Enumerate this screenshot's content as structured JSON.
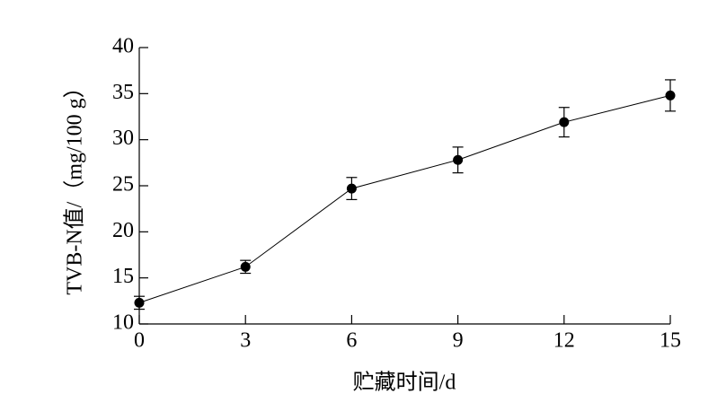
{
  "chart_data": {
    "type": "line",
    "xlabel": "贮藏时间/d",
    "ylabel": "TVB-N值/（mg/100 g）",
    "x": [
      0,
      3,
      6,
      9,
      12,
      15
    ],
    "series": [
      {
        "values": [
          12.3,
          16.2,
          24.7,
          27.8,
          31.9,
          34.8
        ],
        "errors": [
          0.7,
          0.7,
          1.2,
          1.4,
          1.6,
          1.7
        ],
        "color": "#000000"
      }
    ],
    "xlim": [
      0,
      15
    ],
    "xticks": [
      0,
      3,
      6,
      9,
      12,
      15
    ],
    "ylim": [
      10,
      40
    ],
    "yticks": [
      10,
      15,
      20,
      25,
      30,
      35,
      40
    ],
    "grid": false
  }
}
